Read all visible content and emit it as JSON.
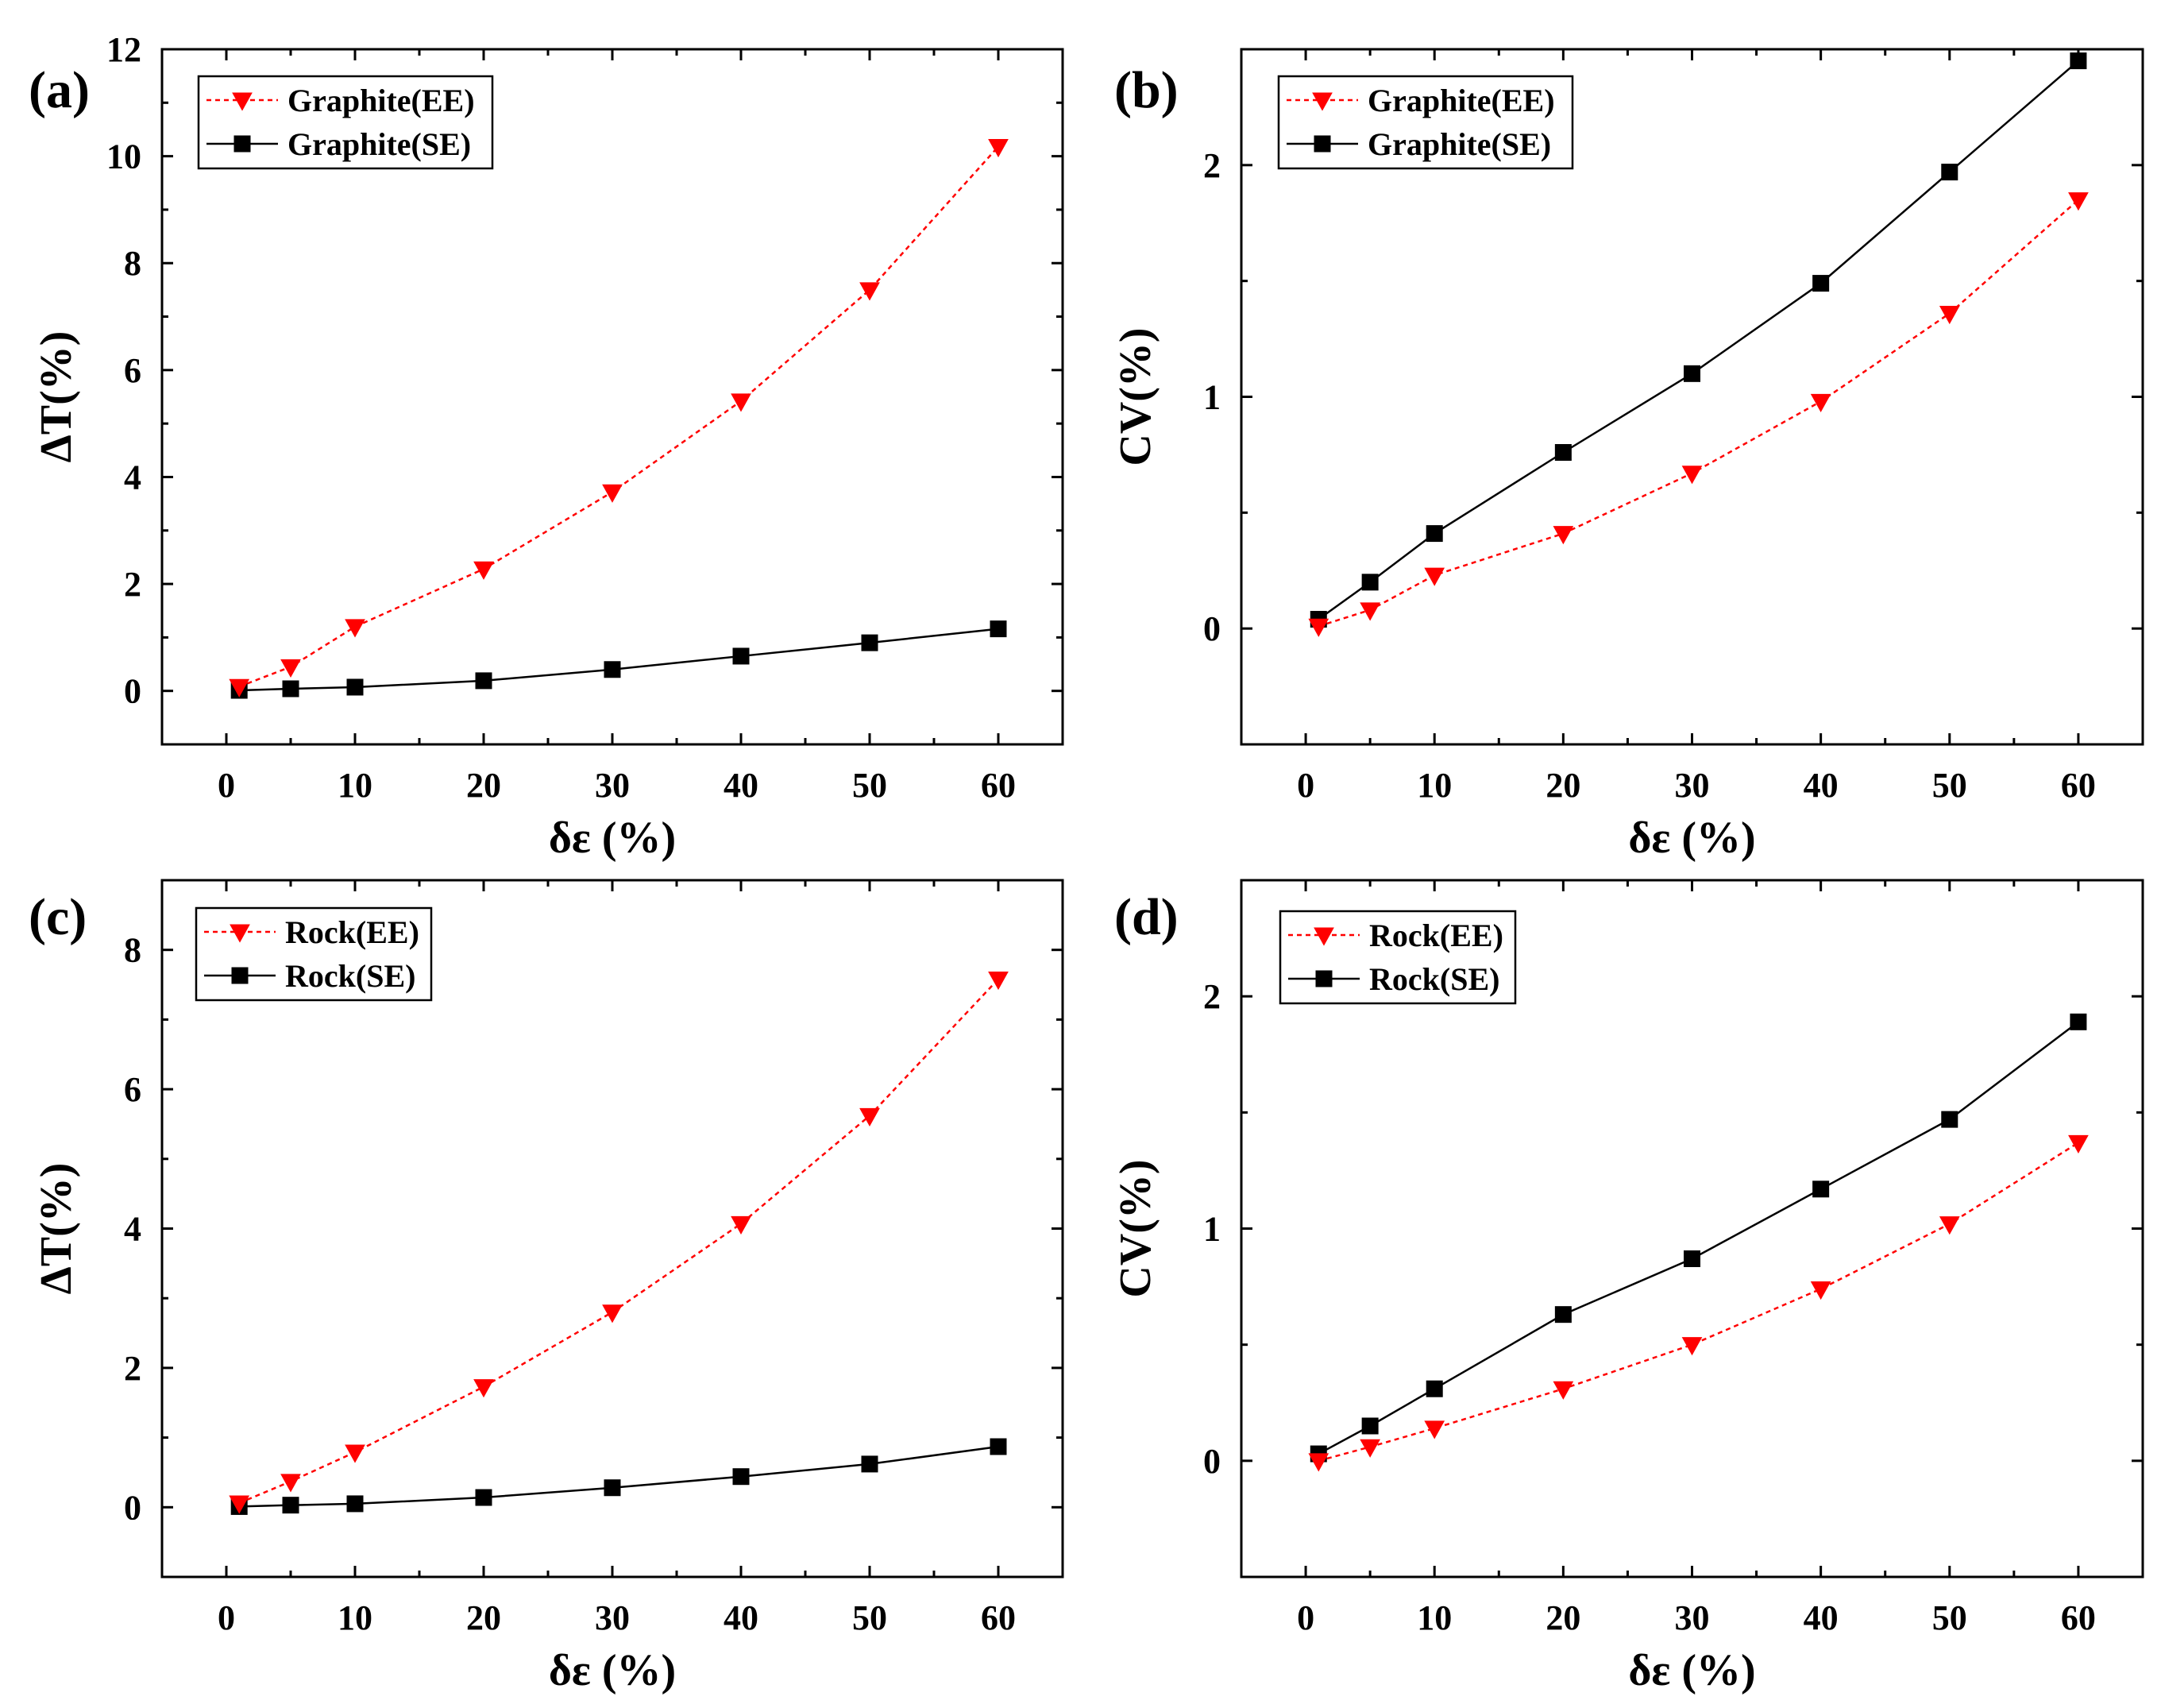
{
  "colors": {
    "ee": "#ff0000",
    "se": "#000000",
    "axis": "#000000"
  },
  "chart_data": [
    {
      "panel": "(a)",
      "type": "line",
      "xlabel": "δε (%)",
      "ylabel": "ΔT(%)",
      "xlim": [
        -5,
        65
      ],
      "ylim": [
        -1,
        12
      ],
      "xticks": [
        "0",
        "10",
        "20",
        "30",
        "40",
        "50",
        "60"
      ],
      "yticks": [
        "0",
        "2",
        "4",
        "6",
        "8",
        "10",
        "12"
      ],
      "legend": "top-left",
      "x": [
        1,
        5,
        10,
        20,
        30,
        40,
        50,
        60
      ],
      "series": [
        {
          "name": "Graphite(EE)",
          "style": "ee",
          "values": [
            0.08,
            0.45,
            1.2,
            2.28,
            3.72,
            5.42,
            7.5,
            10.18
          ]
        },
        {
          "name": "Graphite(SE)",
          "style": "se",
          "values": [
            0.01,
            0.04,
            0.07,
            0.19,
            0.4,
            0.65,
            0.9,
            1.16
          ]
        }
      ]
    },
    {
      "panel": "(b)",
      "type": "line",
      "xlabel": "δε (%)",
      "ylabel": "CV(%)",
      "xlim": [
        -5,
        65
      ],
      "ylim": [
        -0.5,
        2.5
      ],
      "xticks": [
        "0",
        "10",
        "20",
        "30",
        "40",
        "50",
        "60"
      ],
      "yticks": [
        "0",
        "1",
        "2"
      ],
      "legend": "top-left",
      "x": [
        1,
        5,
        10,
        20,
        30,
        40,
        50,
        60
      ],
      "series": [
        {
          "name": "Graphite(EE)",
          "style": "ee",
          "values": [
            0.01,
            0.08,
            0.23,
            0.41,
            0.67,
            0.98,
            1.36,
            1.85
          ]
        },
        {
          "name": "Graphite(SE)",
          "style": "se",
          "values": [
            0.04,
            0.2,
            0.41,
            0.76,
            1.1,
            1.49,
            1.97,
            2.45
          ]
        }
      ]
    },
    {
      "panel": "(c)",
      "type": "line",
      "xlabel": "δε (%)",
      "ylabel": "ΔT(%)",
      "xlim": [
        -5,
        65
      ],
      "ylim": [
        -1,
        9
      ],
      "xticks": [
        "0",
        "10",
        "20",
        "30",
        "40",
        "50",
        "60"
      ],
      "yticks": [
        "0",
        "2",
        "4",
        "6",
        "8"
      ],
      "legend": "top-left",
      "x": [
        1,
        5,
        10,
        20,
        30,
        40,
        50,
        60
      ],
      "series": [
        {
          "name": "Rock(EE)",
          "style": "ee",
          "values": [
            0.06,
            0.37,
            0.79,
            1.73,
            2.8,
            4.07,
            5.62,
            7.58
          ]
        },
        {
          "name": "Rock(SE)",
          "style": "se",
          "values": [
            0.01,
            0.03,
            0.05,
            0.14,
            0.28,
            0.44,
            0.62,
            0.87
          ]
        }
      ]
    },
    {
      "panel": "(d)",
      "type": "line",
      "xlabel": "δε (%)",
      "ylabel": "CV(%)",
      "xlim": [
        -5,
        65
      ],
      "ylim": [
        -0.5,
        2.5
      ],
      "xticks": [
        "0",
        "10",
        "20",
        "30",
        "40",
        "50",
        "60"
      ],
      "yticks": [
        "0",
        "1",
        "2"
      ],
      "legend": "top-left",
      "x": [
        1,
        5,
        10,
        20,
        30,
        40,
        50,
        60
      ],
      "series": [
        {
          "name": "Rock(EE)",
          "style": "ee",
          "values": [
            0.0,
            0.06,
            0.14,
            0.31,
            0.5,
            0.74,
            1.02,
            1.37
          ]
        },
        {
          "name": "Rock(SE)",
          "style": "se",
          "values": [
            0.03,
            0.15,
            0.31,
            0.63,
            0.87,
            1.17,
            1.47,
            1.89
          ]
        }
      ]
    }
  ]
}
